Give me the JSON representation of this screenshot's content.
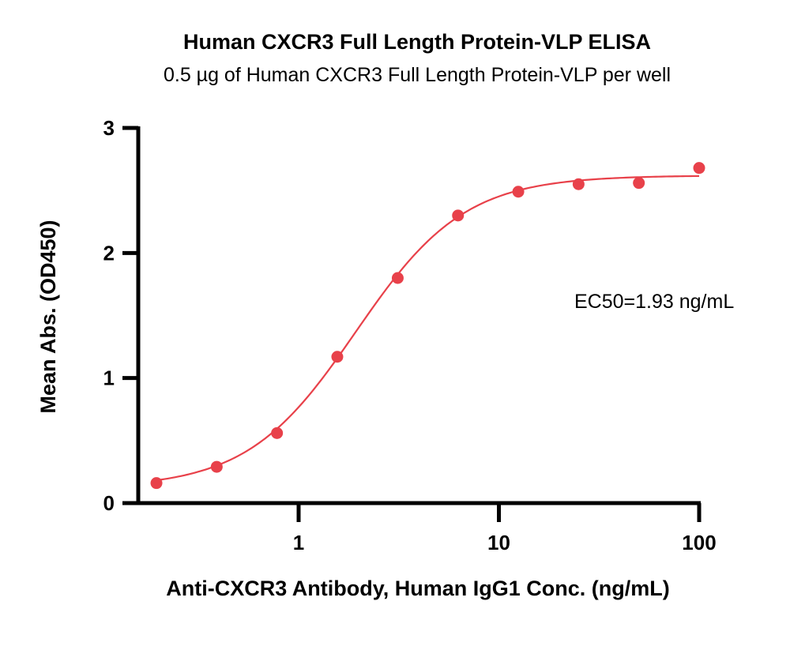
{
  "chart_data": {
    "type": "scatter",
    "title": "Human CXCR3 Full Length Protein-VLP ELISA",
    "subtitle": "0.5 µg of Human CXCR3 Full Length Protein-VLP per well",
    "xlabel": "Anti-CXCR3 Antibody, Human IgG1 Conc. (ng/mL)",
    "ylabel": "Mean Abs. (OD450)",
    "x_scale": "log",
    "xlim": [
      0.2,
      100
    ],
    "ylim": [
      0,
      3
    ],
    "x_ticks": [
      1,
      10,
      100
    ],
    "x_tick_labels": [
      "1",
      "10",
      "100"
    ],
    "y_ticks": [
      0,
      1,
      2,
      3
    ],
    "y_tick_labels": [
      "0",
      "1",
      "2",
      "3"
    ],
    "grid": false,
    "color": "#e8414a",
    "series": [
      {
        "x": [
          0.195,
          0.39,
          0.78,
          1.56,
          3.125,
          6.25,
          12.5,
          25,
          50,
          100
        ],
        "y": [
          0.16,
          0.29,
          0.56,
          1.17,
          1.8,
          2.3,
          2.49,
          2.55,
          2.56,
          2.68
        ]
      }
    ],
    "fit_curve": {
      "model": "4PL",
      "bottom": 0.12,
      "top": 2.62,
      "ec50": 1.93,
      "hill": 1.6
    },
    "annotation": "EC50=1.93 ng/mL"
  }
}
